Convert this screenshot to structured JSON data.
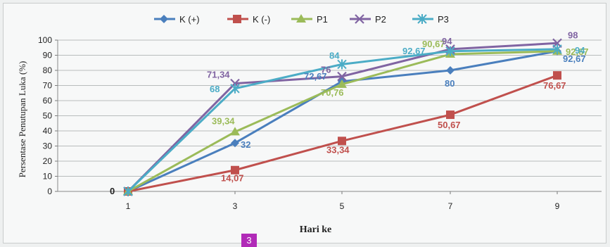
{
  "chart_data": {
    "type": "line",
    "title": "",
    "xlabel": "Hari ke",
    "ylabel": "Persentase Penutupan Luka (%)",
    "x": [
      1,
      3,
      5,
      7,
      9
    ],
    "ylim": [
      0,
      100
    ],
    "yticks": [
      0,
      10,
      20,
      30,
      40,
      50,
      60,
      70,
      80,
      90,
      100
    ],
    "grid": true,
    "legend_position": "top",
    "series": [
      {
        "name": "K (+)",
        "color": "#4a7fbd",
        "marker": "diamond",
        "values": [
          0,
          32,
          72.67,
          80,
          92.67
        ],
        "labels": [
          "0",
          "32",
          "72,67",
          "80",
          "92,67"
        ]
      },
      {
        "name": "K (-)",
        "color": "#c0504d",
        "marker": "square",
        "values": [
          0,
          14.07,
          33.34,
          50.67,
          76.67
        ],
        "labels": [
          "",
          "14,07",
          "33,34",
          "50,67",
          "76,67"
        ]
      },
      {
        "name": "P1",
        "color": "#9bbb59",
        "marker": "triangle",
        "values": [
          0,
          39.34,
          70.76,
          90.67,
          92.67
        ],
        "labels": [
          "",
          "39,34",
          "70,76",
          "90,67",
          "92,67"
        ]
      },
      {
        "name": "P2",
        "color": "#8064a2",
        "marker": "x",
        "values": [
          0,
          71.34,
          76,
          94,
          98
        ],
        "labels": [
          "",
          "71,34",
          "76",
          "94",
          "98"
        ]
      },
      {
        "name": "P3",
        "color": "#4bacc6",
        "marker": "star",
        "values": [
          0,
          68,
          84,
          92.67,
          94
        ],
        "labels": [
          "",
          "68",
          "84",
          "92,67",
          "94"
        ]
      }
    ]
  },
  "page_number": "3"
}
